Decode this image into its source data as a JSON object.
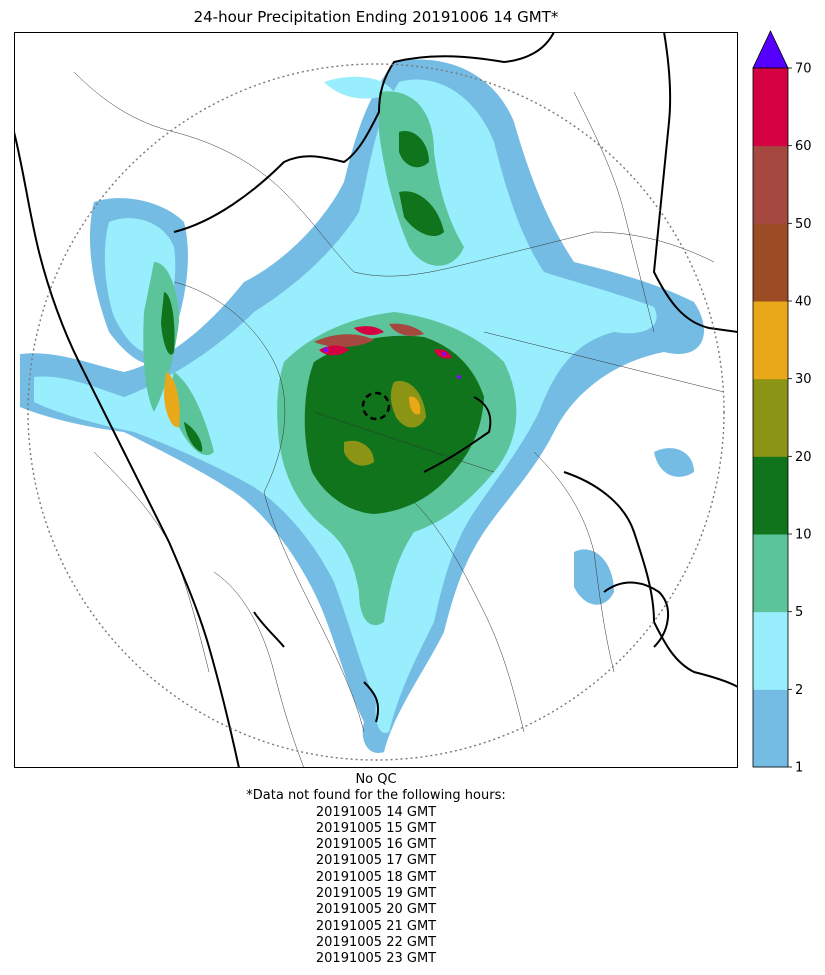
{
  "title": "24-hour Precipitation Ending 20191006 14 GMT*",
  "colorbar": {
    "bins": [
      {
        "low": 1,
        "high": 2,
        "color": "#74bce4"
      },
      {
        "low": 2,
        "high": 5,
        "color": "#98eefc"
      },
      {
        "low": 5,
        "high": 10,
        "color": "#5cc49a"
      },
      {
        "low": 10,
        "high": 20,
        "color": "#0f741c"
      },
      {
        "low": 20,
        "high": 30,
        "color": "#8c9416"
      },
      {
        "low": 30,
        "high": 40,
        "color": "#e8a818"
      },
      {
        "low": 40,
        "high": 50,
        "color": "#9c4c24"
      },
      {
        "low": 50,
        "high": 60,
        "color": "#a44840"
      },
      {
        "low": 60,
        "high": 70,
        "color": "#d40042"
      }
    ],
    "ticks": [
      "1",
      "2",
      "5",
      "10",
      "20",
      "30",
      "40",
      "50",
      "60",
      "70"
    ],
    "extend_color": "#5500ff"
  },
  "notes": {
    "qc": "No QC",
    "missing_header": "*Data not found for the following hours:",
    "missing_hours": [
      "20191005 14 GMT",
      "20191005 15 GMT",
      "20191005 16 GMT",
      "20191005 17 GMT",
      "20191005 18 GMT",
      "20191005 19 GMT",
      "20191005 20 GMT",
      "20191005 21 GMT",
      "20191005 22 GMT",
      "20191005 23 GMT"
    ]
  }
}
